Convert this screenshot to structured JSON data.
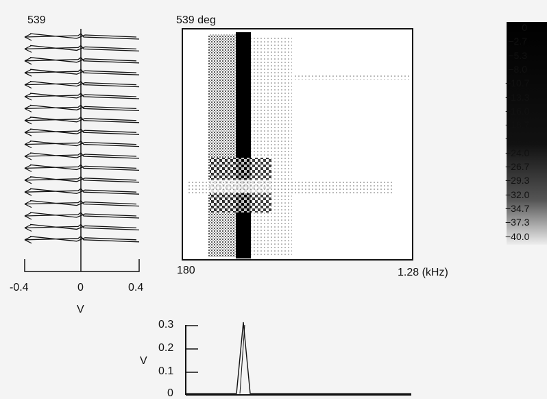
{
  "left_panel": {
    "title": "539",
    "x_ticks": [
      "-0.4",
      "0",
      "0.4"
    ],
    "x_unit": "V"
  },
  "center_panel": {
    "title": "539 deg",
    "x_start": "180",
    "x_end": "1.28 (kHz)"
  },
  "colorbar": {
    "labels": [
      "0",
      "-2.7",
      "-5.3",
      "-8.0",
      "-10.7",
      "-13.3",
      "-16.0",
      "-18.7",
      "-21.3",
      "-24.0",
      "-26.7",
      "-29.3",
      "-32.0",
      "-34.7",
      "-37.3",
      "-40.0"
    ]
  },
  "bottom_panel": {
    "y_ticks": [
      "0.3",
      "0.2",
      "0.1",
      "0"
    ],
    "y_unit": "V"
  },
  "chart_data": [
    {
      "type": "line",
      "description": "stacked waveform traces",
      "title": "539",
      "xlabel": "V",
      "xlim": [
        -0.4,
        0.4
      ],
      "trace_count": 18
    },
    {
      "type": "heatmap",
      "title": "539 deg",
      "x_range_labels": [
        "180",
        "1.28 (kHz)"
      ],
      "color_scale": [
        0,
        -40.0
      ]
    },
    {
      "type": "line",
      "ylabel": "V",
      "ylim": [
        0,
        0.3
      ],
      "peak": 0.3
    }
  ]
}
